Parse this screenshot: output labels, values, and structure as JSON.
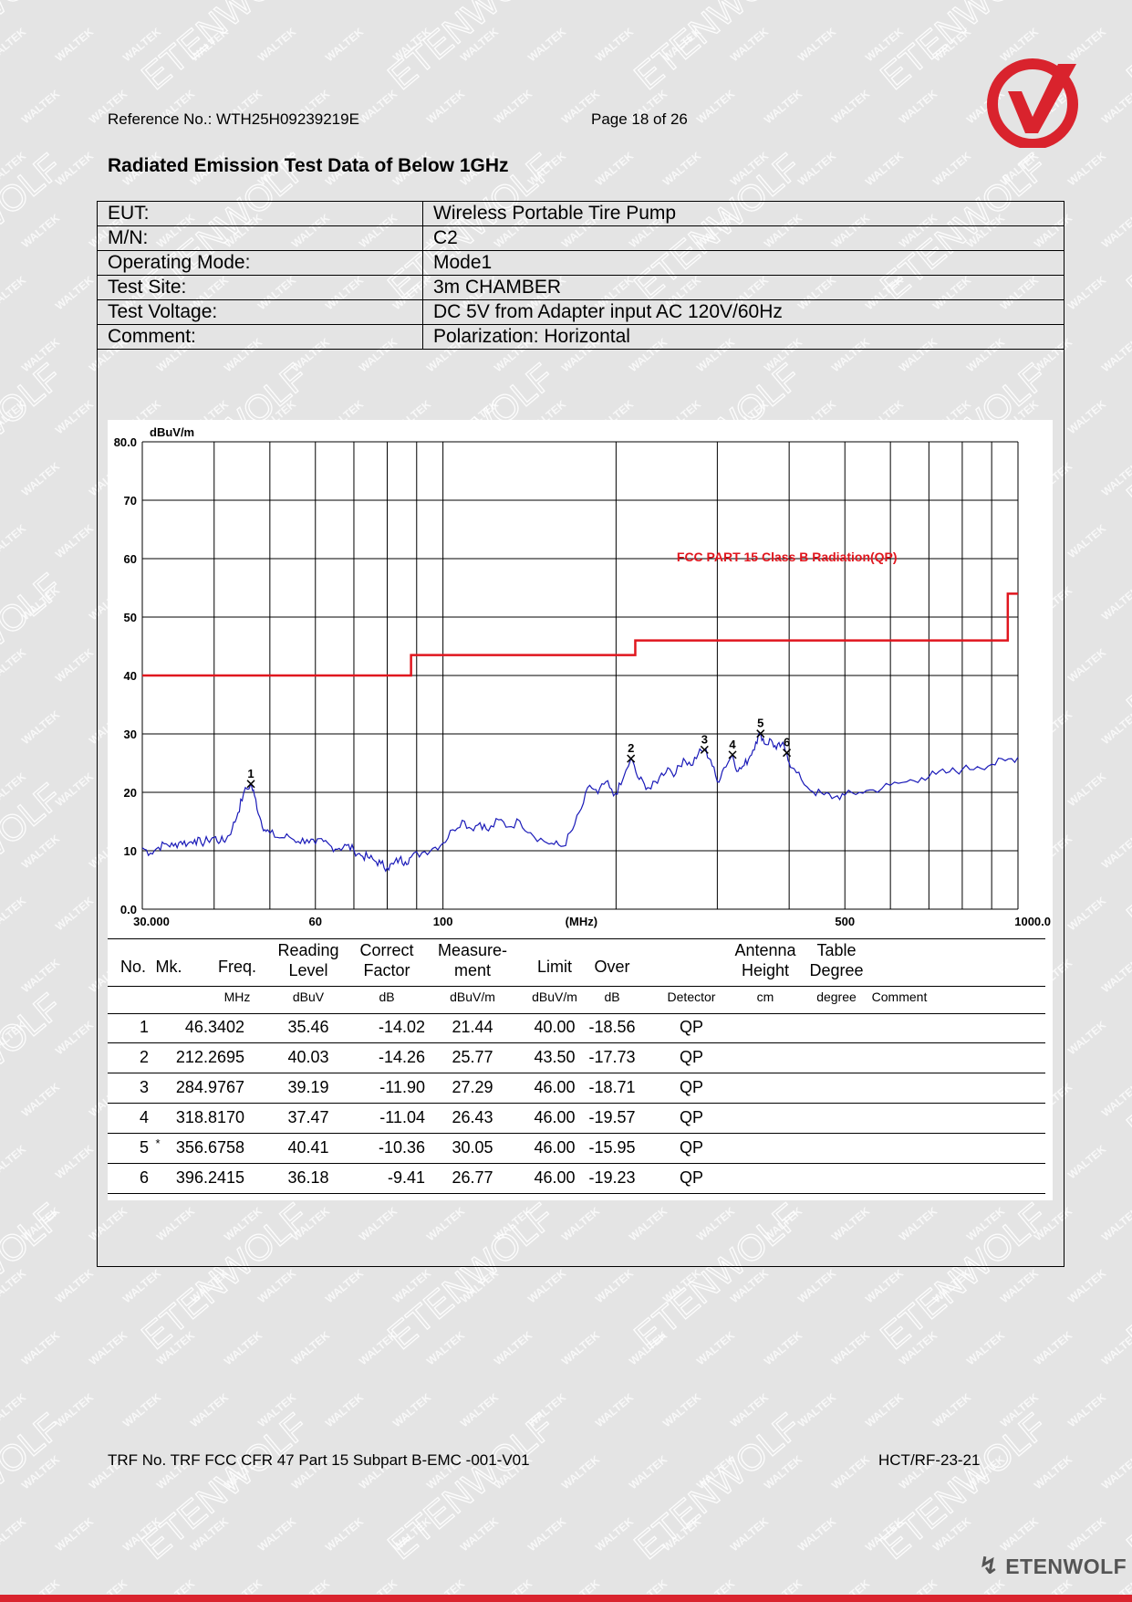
{
  "header": {
    "reference": "Reference No.: WTH25H09239219E",
    "page": "Page 18 of 26"
  },
  "title": "Radiated Emission Test Data of Below 1GHz",
  "info": [
    {
      "label": "EUT:",
      "value": "Wireless Portable Tire Pump"
    },
    {
      "label": "M/N:",
      "value": "C2"
    },
    {
      "label": "Operating Mode:",
      "value": "Mode1"
    },
    {
      "label": "Test Site:",
      "value": "3m CHAMBER"
    },
    {
      "label": "Test Voltage:",
      "value": "DC 5V from Adapter input AC 120V/60Hz"
    },
    {
      "label": "Comment:",
      "value": "Polarization: Horizontal"
    }
  ],
  "chart_data": {
    "type": "line",
    "xscale": "log",
    "xlim": [
      30,
      1000
    ],
    "ylim": [
      0,
      80
    ],
    "ylabel": "dBuV/m",
    "xlabel": "(MHz)",
    "y_ticks": [
      "80.0",
      "70",
      "60",
      "50",
      "40",
      "30",
      "20",
      "10",
      "0.0"
    ],
    "x_ticks": [
      "30.000",
      "60",
      "100",
      "500",
      "1000.0"
    ],
    "limit_label": "FCC PART 15 Class B Radiation(QP)",
    "limit": [
      [
        30,
        40
      ],
      [
        88,
        40
      ],
      [
        88,
        43.5
      ],
      [
        216,
        43.5
      ],
      [
        216,
        46
      ],
      [
        960,
        46
      ],
      [
        960,
        54
      ],
      [
        1000,
        54
      ]
    ],
    "trace": [
      [
        30,
        10.5
      ],
      [
        31,
        9.6
      ],
      [
        32,
        10.6
      ],
      [
        33,
        11.2
      ],
      [
        34,
        10.8
      ],
      [
        35,
        11.6
      ],
      [
        36,
        11.2
      ],
      [
        37,
        11.9
      ],
      [
        38,
        11.3
      ],
      [
        39,
        11.8
      ],
      [
        40,
        12.3
      ],
      [
        41,
        11.6
      ],
      [
        42,
        12.0
      ],
      [
        43,
        13.8
      ],
      [
        44,
        16.5
      ],
      [
        45,
        19.8
      ],
      [
        46.3,
        21.4
      ],
      [
        47,
        19.5
      ],
      [
        48,
        15.8
      ],
      [
        49,
        13.6
      ],
      [
        50,
        13.0
      ],
      [
        52,
        12.2
      ],
      [
        54,
        12.4
      ],
      [
        56,
        11.6
      ],
      [
        58,
        11.9
      ],
      [
        60,
        11.2
      ],
      [
        62,
        11.6
      ],
      [
        64,
        10.7
      ],
      [
        66,
        10.4
      ],
      [
        68,
        10.9
      ],
      [
        70,
        10.1
      ],
      [
        72,
        9.2
      ],
      [
        74,
        8.9
      ],
      [
        76,
        8.3
      ],
      [
        78,
        7.8
      ],
      [
        80,
        7.1
      ],
      [
        82,
        7.7
      ],
      [
        84,
        8.6
      ],
      [
        86,
        8.1
      ],
      [
        88,
        8.9
      ],
      [
        92,
        9.7
      ],
      [
        96,
        10.4
      ],
      [
        100,
        11.3
      ],
      [
        104,
        13.6
      ],
      [
        108,
        15.2
      ],
      [
        112,
        13.8
      ],
      [
        116,
        14.8
      ],
      [
        120,
        13.4
      ],
      [
        125,
        15.3
      ],
      [
        130,
        14.1
      ],
      [
        136,
        15.1
      ],
      [
        142,
        13.1
      ],
      [
        150,
        11.6
      ],
      [
        156,
        11.1
      ],
      [
        162,
        10.8
      ],
      [
        168,
        13.6
      ],
      [
        174,
        17.2
      ],
      [
        180,
        21.2
      ],
      [
        186,
        19.8
      ],
      [
        192,
        21.8
      ],
      [
        198,
        19.4
      ],
      [
        204,
        21.3
      ],
      [
        212.3,
        25.8
      ],
      [
        218,
        22.6
      ],
      [
        224,
        21.4
      ],
      [
        230,
        20.6
      ],
      [
        238,
        22.6
      ],
      [
        246,
        24.2
      ],
      [
        254,
        23.2
      ],
      [
        262,
        25.8
      ],
      [
        270,
        24.6
      ],
      [
        278,
        26.6
      ],
      [
        285,
        27.3
      ],
      [
        292,
        25.6
      ],
      [
        300,
        21.8
      ],
      [
        308,
        24.2
      ],
      [
        318.8,
        26.4
      ],
      [
        326,
        23.6
      ],
      [
        334,
        24.6
      ],
      [
        342,
        26.2
      ],
      [
        350,
        28.6
      ],
      [
        356.7,
        30.1
      ],
      [
        364,
        28.2
      ],
      [
        372,
        29.0
      ],
      [
        380,
        27.4
      ],
      [
        388,
        28.2
      ],
      [
        396.2,
        26.8
      ],
      [
        404,
        24.2
      ],
      [
        420,
        22.2
      ],
      [
        440,
        20.1
      ],
      [
        460,
        19.6
      ],
      [
        480,
        19.2
      ],
      [
        500,
        19.5
      ],
      [
        530,
        20.0
      ],
      [
        560,
        20.4
      ],
      [
        600,
        21.2
      ],
      [
        640,
        21.8
      ],
      [
        680,
        22.5
      ],
      [
        720,
        23.1
      ],
      [
        760,
        23.5
      ],
      [
        800,
        23.9
      ],
      [
        850,
        24.4
      ],
      [
        900,
        24.8
      ],
      [
        950,
        25.4
      ],
      [
        1000,
        26.0
      ]
    ],
    "markers": [
      {
        "label": "1",
        "freq": 46.3402
      },
      {
        "label": "2",
        "freq": 212.2695
      },
      {
        "label": "3",
        "freq": 284.9767
      },
      {
        "label": "4",
        "freq": 318.817
      },
      {
        "label": "5",
        "freq": 356.6758
      },
      {
        "label": "6",
        "freq": 396.2415
      }
    ]
  },
  "table": {
    "headers": [
      "No.",
      "Mk.",
      "Freq.",
      "Reading Level",
      "Correct Factor",
      "Measure- ment",
      "Limit",
      "Over",
      "",
      "Antenna Height",
      "Table Degree",
      ""
    ],
    "units": [
      "",
      "",
      "MHz",
      "dBuV",
      "dB",
      "dBuV/m",
      "dBuV/m",
      "dB",
      "Detector",
      "cm",
      "degree",
      "Comment"
    ],
    "rows": [
      [
        "1",
        "",
        "46.3402",
        "35.46",
        "-14.02",
        "21.44",
        "40.00",
        "-18.56",
        "QP"
      ],
      [
        "2",
        "",
        "212.2695",
        "40.03",
        "-14.26",
        "25.77",
        "43.50",
        "-17.73",
        "QP"
      ],
      [
        "3",
        "",
        "284.9767",
        "39.19",
        "-11.90",
        "27.29",
        "46.00",
        "-18.71",
        "QP"
      ],
      [
        "4",
        "",
        "318.8170",
        "37.47",
        "-11.04",
        "26.43",
        "46.00",
        "-19.57",
        "QP"
      ],
      [
        "5",
        "*",
        "356.6758",
        "40.41",
        "-10.36",
        "30.05",
        "46.00",
        "-15.95",
        "QP"
      ],
      [
        "6",
        "",
        "396.2415",
        "36.18",
        "-9.41",
        "26.77",
        "46.00",
        "-19.23",
        "QP"
      ]
    ]
  },
  "footer": {
    "trf": "TRF No. TRF FCC CFR 47 Part 15 Subpart B-EMC -001-V01",
    "code": "HCT/RF-23-21",
    "brand": "ETENWOLF"
  },
  "watermark": {
    "small": "WALTEK",
    "large": "ETENWOLF"
  },
  "colors": {
    "limit": "#e0161e",
    "trace": "#1a1ab8",
    "accent": "#d9232d"
  }
}
